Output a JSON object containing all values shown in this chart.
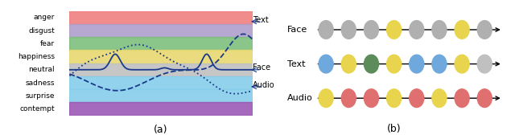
{
  "emotions": [
    "anger",
    "disgust",
    "fear",
    "happiness",
    "neutral",
    "sadness",
    "surprise",
    "contempt"
  ],
  "emotion_colors": [
    "#F08080",
    "#B09FCC",
    "#7DBF7D",
    "#E8D870",
    "#C0C0C0",
    "#87CEEB",
    "#87CEEB",
    "#9B59B6"
  ],
  "face_dots": [
    "#B0B0B0",
    "#B0B0B0",
    "#B0B0B0",
    "#E8D44D",
    "#B0B0B0",
    "#B0B0B0",
    "#E8D44D",
    "#B0B0B0"
  ],
  "text_dots": [
    "#6FA8DC",
    "#E8D44D",
    "#5B8C5A",
    "#E8D44D",
    "#6FA8DC",
    "#6FA8DC",
    "#E8D44D",
    "#C0C0C0"
  ],
  "audio_dots": [
    "#E8D44D",
    "#E07070",
    "#E07070",
    "#E8D44D",
    "#E07070",
    "#E8D44D",
    "#E07070",
    "#E07070"
  ],
  "bg_color": "#FFFFFF",
  "curve_color": "#1a3a8a",
  "label_a": "(a)",
  "label_b": "(b)"
}
